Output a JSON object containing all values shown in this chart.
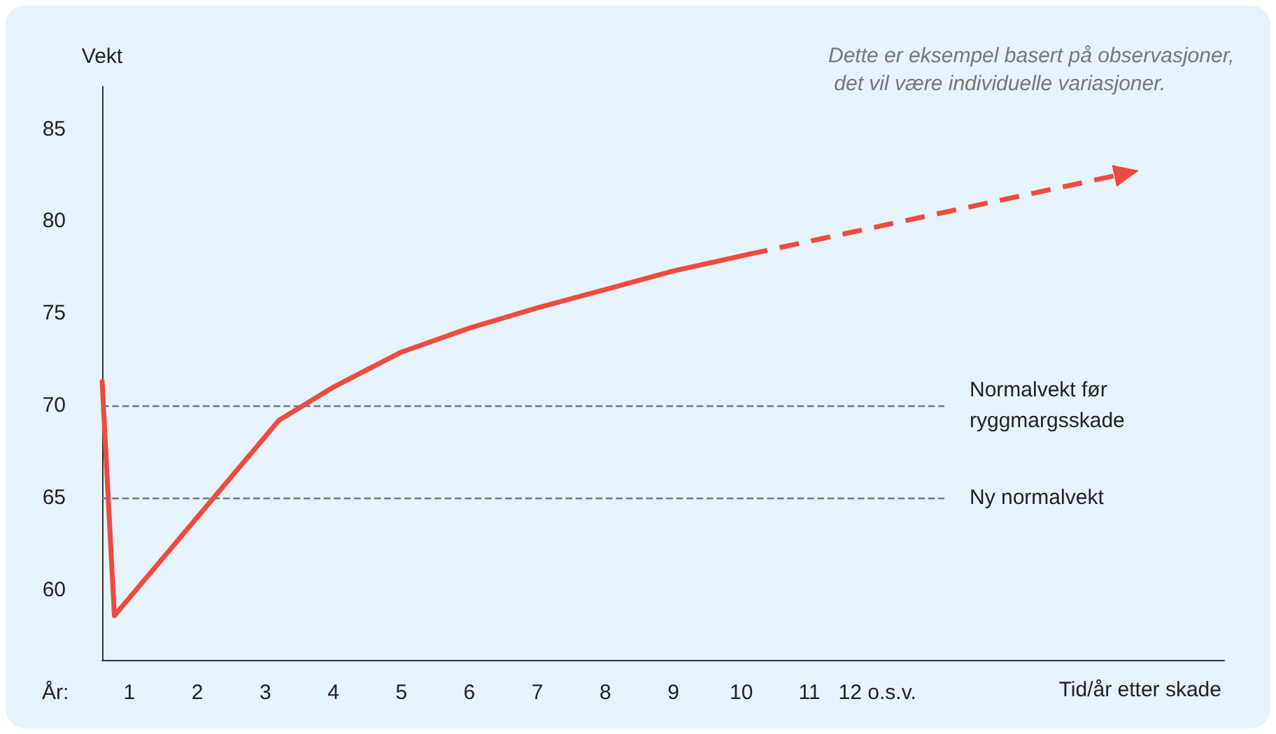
{
  "chart_data": {
    "type": "line",
    "ylabel": "Vekt",
    "xlabel": "Tid/år etter skade",
    "annotations": [
      "Dette er eksempel basert på observasjoner, det vil være individuelle variasjoner.",
      "År:"
    ],
    "xlim": [
      0.6,
      17.1
    ],
    "ylim": [
      56.2,
      87.3
    ],
    "xticks": [
      1,
      2,
      3,
      4,
      5,
      6,
      7,
      8,
      9,
      10,
      11,
      {
        "value": 12,
        "label": "12 o.s.v."
      }
    ],
    "yticks": [
      60,
      65,
      70,
      75,
      80,
      85
    ],
    "marker": "none",
    "grid": false,
    "series": [
      {
        "color": "#ee4b3f",
        "line_style": "solid",
        "x": [
          0.6,
          0.78,
          3.2,
          4,
          5,
          6,
          7,
          8,
          9,
          10.1
        ],
        "values": [
          71.3,
          58.6,
          69.2,
          71.0,
          72.9,
          74.2,
          75.3,
          76.3,
          77.3,
          78.2
        ]
      }
    ],
    "ref_lines": [
      {
        "axis": "y",
        "value": 70,
        "label": "Normalvekt før ryggmargsskade",
        "color": "#777777",
        "line_style": "dashed"
      },
      {
        "axis": "y",
        "value": 65,
        "label": "Ny normalvekt",
        "color": "#777777",
        "line_style": "dashed"
      }
    ]
  }
}
